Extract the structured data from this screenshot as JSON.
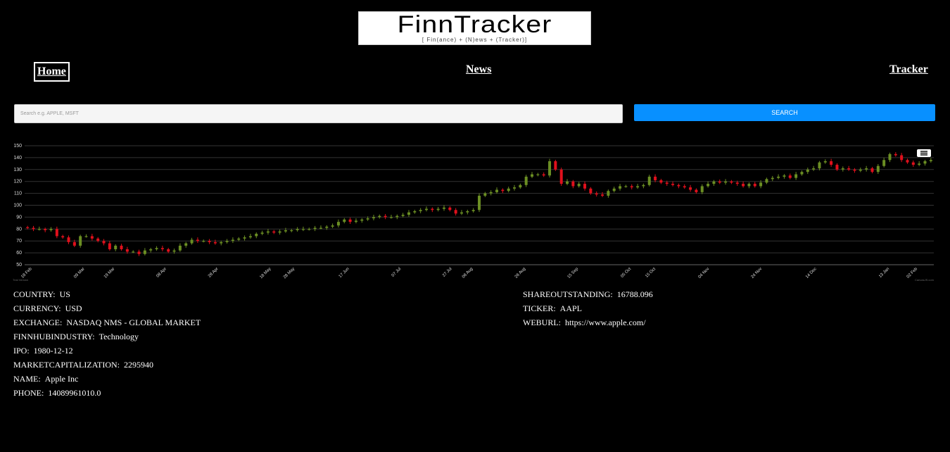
{
  "header": {
    "logo_title": "FinnTracker",
    "logo_tagline": "[ Fin(ance) + (N)ews + (Tracker)]"
  },
  "nav": {
    "home": "Home",
    "news": "News",
    "tracker": "Tracker"
  },
  "search": {
    "placeholder": "Search e.g. APPLE, MSFT",
    "button_label": "SEARCH"
  },
  "chart_menu_icon": "hamburger-menu-icon",
  "chart_data": {
    "type": "candlestick",
    "ylim": [
      50,
      150
    ],
    "y_ticks": [
      50,
      60,
      70,
      80,
      90,
      100,
      110,
      120,
      130,
      140,
      150
    ],
    "x_ticks": [
      "18 Feb",
      "09 Mar",
      "19 Mar",
      "08 Apr",
      "28 Apr",
      "18 May",
      "28 May",
      "17 Jun",
      "07 Jul",
      "27 Jul",
      "06 Aug",
      "26 Aug",
      "15 Sep",
      "05 Oct",
      "15 Oct",
      "04 Nov",
      "24 Nov",
      "14 Dec",
      "13 Jan",
      "02 Feb"
    ],
    "closes": [
      81,
      80,
      80,
      79,
      80,
      74,
      73,
      69,
      66,
      74,
      74,
      72,
      70,
      68,
      63,
      66,
      63,
      61,
      61,
      59,
      62,
      63,
      64,
      63,
      61,
      62,
      66,
      68,
      71,
      70,
      70,
      69,
      68,
      69,
      70,
      71,
      72,
      73,
      74,
      76,
      77,
      78,
      77,
      78,
      79,
      79,
      80,
      80,
      80,
      81,
      81,
      82,
      83,
      86,
      88,
      86,
      87,
      88,
      89,
      90,
      91,
      90,
      90,
      91,
      92,
      94,
      95,
      96,
      97,
      96,
      97,
      98,
      96,
      93,
      94,
      95,
      96,
      108,
      110,
      111,
      113,
      112,
      114,
      115,
      117,
      124,
      126,
      126,
      125,
      137,
      130,
      118,
      120,
      116,
      118,
      114,
      110,
      109,
      108,
      112,
      114,
      116,
      116,
      115,
      116,
      117,
      124,
      121,
      119,
      118,
      117,
      116,
      115,
      113,
      111,
      116,
      118,
      120,
      119,
      120,
      119,
      118,
      116,
      118,
      116,
      119,
      122,
      123,
      124,
      125,
      123,
      126,
      128,
      130,
      131,
      136,
      137,
      134,
      130,
      131,
      130,
      129,
      130,
      131,
      128,
      133,
      138,
      143,
      142,
      138,
      136,
      134,
      135,
      137,
      138
    ],
    "series_colors": {
      "up": "#6b8e23",
      "down": "#e0101c"
    },
    "watermark_left": "Trial Version",
    "watermark_right": "CanvasJS.com"
  },
  "company_left": [
    {
      "label": "COUNTRY:",
      "value": "US"
    },
    {
      "label": "CURRENCY:",
      "value": "USD"
    },
    {
      "label": "EXCHANGE:",
      "value": "NASDAQ NMS - GLOBAL MARKET"
    },
    {
      "label": "FINNHUBINDUSTRY:",
      "value": "Technology"
    },
    {
      "label": "IPO:",
      "value": "1980-12-12"
    },
    {
      "label": "MARKETCAPITALIZATION:",
      "value": "2295940"
    },
    {
      "label": "NAME:",
      "value": "Apple Inc"
    },
    {
      "label": "PHONE:",
      "value": "14089961010.0"
    }
  ],
  "company_right": [
    {
      "label": "SHAREOUTSTANDING:",
      "value": "16788.096"
    },
    {
      "label": "TICKER:",
      "value": "AAPL"
    },
    {
      "label": "WEBURL:",
      "value": "https://www.apple.com/"
    }
  ]
}
